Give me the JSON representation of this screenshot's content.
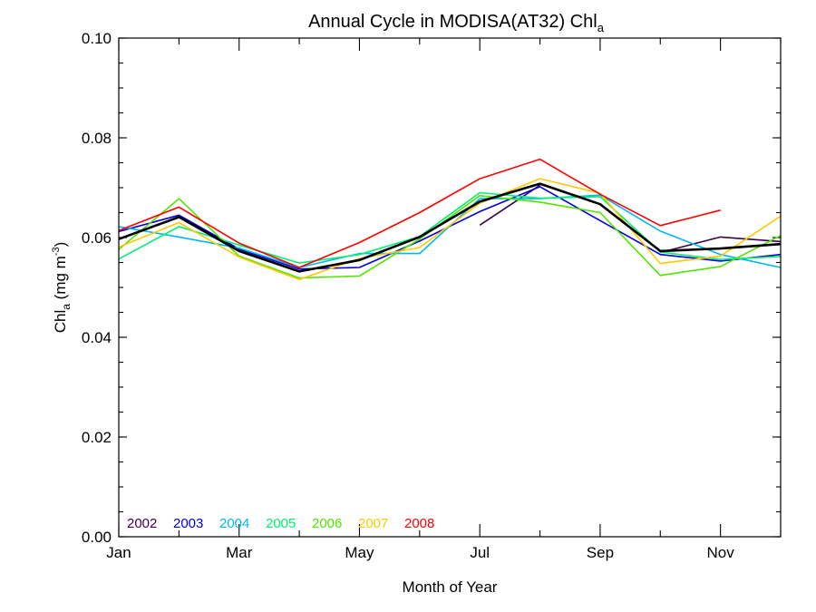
{
  "chart_data": {
    "type": "line",
    "title": "Annual Cycle in MODISA(AT32) Chl",
    "title_subscript": "a",
    "xlabel": "Month of Year",
    "ylabel_main": "Chl",
    "ylabel_sub": "a",
    "ylabel_units_prefix": " (mg m",
    "ylabel_units_sup": "-3",
    "ylabel_units_suffix": ")",
    "xlim": [
      1,
      12
    ],
    "ylim": [
      0.0,
      0.1
    ],
    "x_ticks": [
      1,
      3,
      5,
      7,
      9,
      11
    ],
    "x_tick_labels": [
      "Jan",
      "Mar",
      "May",
      "Jul",
      "Sep",
      "Nov"
    ],
    "y_ticks": [
      0.0,
      0.02,
      0.04,
      0.06,
      0.08,
      0.1
    ],
    "y_tick_labels": [
      "0.00",
      "0.02",
      "0.04",
      "0.06",
      "0.08",
      "0.10"
    ],
    "grid": false,
    "legend_position": "bottom-left",
    "x": [
      1,
      2,
      3,
      4,
      5,
      6,
      7,
      8,
      9,
      10,
      11,
      12
    ],
    "series": [
      {
        "name": "2002",
        "color": "#3d0050",
        "values": [
          null,
          null,
          null,
          null,
          null,
          null,
          0.0625,
          0.0705,
          null,
          0.057,
          0.0601,
          0.0592
        ]
      },
      {
        "name": "2003",
        "color": "#0000dd",
        "values": [
          0.0612,
          0.0645,
          0.0577,
          0.0537,
          0.054,
          0.0593,
          0.0652,
          0.0702,
          0.0634,
          0.0566,
          0.0553,
          0.0566
        ]
      },
      {
        "name": "2004",
        "color": "#00b8f0",
        "values": [
          0.0622,
          0.0601,
          0.0579,
          0.054,
          0.0568,
          0.0568,
          0.0678,
          0.0678,
          0.0685,
          0.0613,
          0.0566,
          0.054
        ]
      },
      {
        "name": "2005",
        "color": "#00f070",
        "values": [
          0.0557,
          0.0622,
          0.0585,
          0.0549,
          0.0566,
          0.0602,
          0.069,
          0.0679,
          0.0682,
          0.0571,
          0.0556,
          0.0562
        ]
      },
      {
        "name": "2006",
        "color": "#50e600",
        "values": [
          0.0576,
          0.0678,
          0.0563,
          0.0519,
          0.0523,
          0.0597,
          0.0684,
          0.0671,
          0.065,
          0.0524,
          0.0542,
          0.0604
        ]
      },
      {
        "name": "2007",
        "color": "#ffc800",
        "values": [
          0.0581,
          0.063,
          0.0561,
          0.0516,
          0.0558,
          0.058,
          0.0669,
          0.0718,
          0.0689,
          0.0548,
          0.0563,
          0.0643
        ]
      },
      {
        "name": "2008",
        "color": "#ff0000",
        "values": [
          0.0614,
          0.0661,
          0.0589,
          0.054,
          0.059,
          0.065,
          0.0718,
          0.0757,
          0.0687,
          0.0624,
          0.0655,
          null
        ]
      },
      {
        "name": "",
        "color": "#000000",
        "stroke_width": 2.6,
        "values": [
          0.0597,
          0.0641,
          0.0573,
          0.0532,
          0.0555,
          0.0601,
          0.0672,
          0.0708,
          0.0667,
          0.0573,
          0.0578,
          0.0587
        ]
      }
    ]
  }
}
